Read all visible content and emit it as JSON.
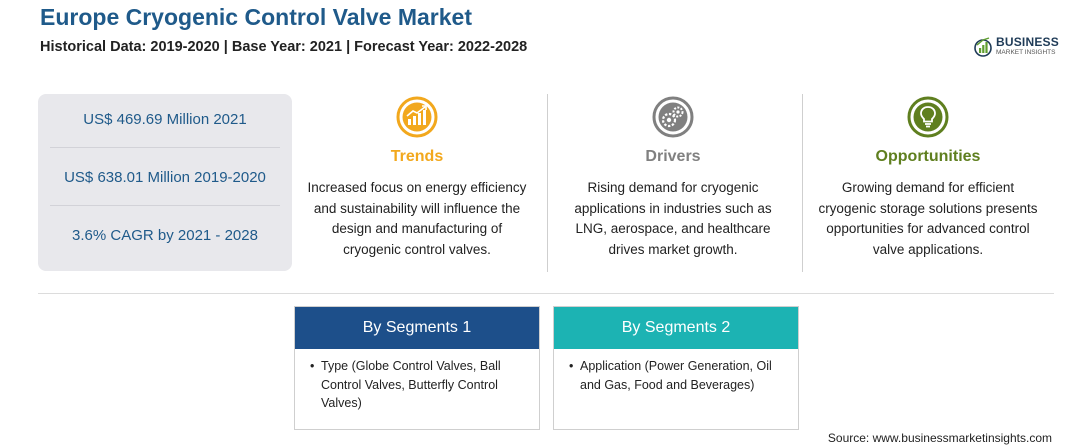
{
  "header": {
    "title": "Europe Cryogenic Control Valve Market",
    "subtitle": "Historical Data: 2019-2020 | Base Year: 2021 | Forecast Year: 2022-2028"
  },
  "logo": {
    "name": "BUSINESS",
    "tagline": "MARKET INSIGHTS"
  },
  "stats": [
    "US$ 469.69 Million 2021",
    "US$ 638.01 Million 2019-2020",
    "3.6% CAGR by 2021 - 2028"
  ],
  "columns": [
    {
      "icon": "trend-chart-icon",
      "label": "Trends",
      "color": "#f2a81d",
      "text": "Increased focus on energy efficiency and sustainability will influence the design and manufacturing of cryogenic control valves."
    },
    {
      "icon": "gears-icon",
      "label": "Drivers",
      "color": "#808080",
      "text": "Rising demand for cryogenic applications in industries such as LNG, aerospace, and healthcare drives market growth."
    },
    {
      "icon": "lightbulb-icon",
      "label": "Opportunities",
      "color": "#5f7f1f",
      "text": "Growing demand for efficient cryogenic storage solutions presents opportunities for advanced control valve applications."
    }
  ],
  "segments": [
    {
      "title": "By Segments 1",
      "color": "#1d4f8a",
      "bullet": "•",
      "text": "Type (Globe Control Valves, Ball Control Valves, Butterfly Control Valves)"
    },
    {
      "title": "By Segments 2",
      "color": "#1cb3b3",
      "bullet": "•",
      "text": "Application (Power Generation, Oil and Gas, Food and Beverages)"
    }
  ],
  "source": "Source: www.businessmarketinsights.com"
}
